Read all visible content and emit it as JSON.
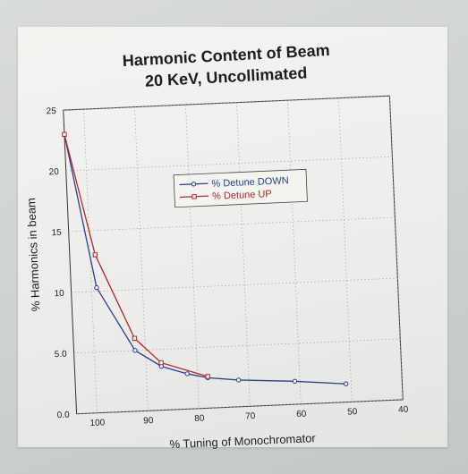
{
  "chart_data": {
    "type": "line",
    "title": "Harmonic Content of Beam",
    "subtitle": "20 KeV, Uncollimated",
    "xlabel": "% Tuning of Monochromator",
    "ylabel": "% Harmonics in beam",
    "x_ticks": [
      "100",
      "90",
      "80",
      "70",
      "60",
      "50",
      "40"
    ],
    "y_ticks": [
      "0.0",
      "5.0",
      "10",
      "15",
      "20",
      "25"
    ],
    "xlim": [
      104,
      40
    ],
    "ylim": [
      0,
      25
    ],
    "grid": true,
    "legend_position": "center-right",
    "series": [
      {
        "name": "% Detune DOWN",
        "color": "#2b3f86",
        "x": [
          104,
          99,
          92,
          87,
          82,
          78,
          72,
          61,
          51
        ],
        "y": [
          23,
          10.3,
          5.0,
          3.6,
          2.9,
          2.5,
          2.2,
          1.9,
          1.5
        ]
      },
      {
        "name": "% Detune UP",
        "color": "#b3262e",
        "x": [
          104,
          99,
          92,
          87,
          78
        ],
        "y": [
          23,
          13,
          6.0,
          3.9,
          2.6
        ]
      }
    ]
  }
}
